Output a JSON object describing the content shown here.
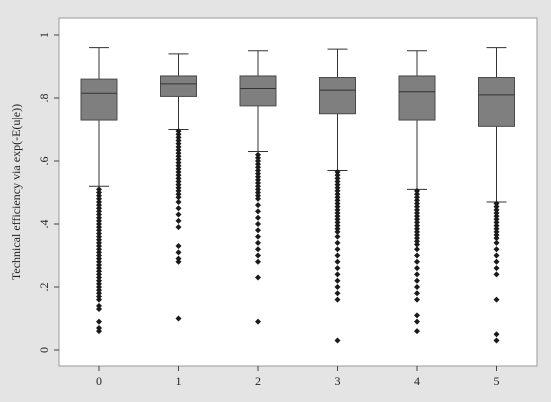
{
  "chart_data": {
    "type": "box",
    "ylabel": "Technical efficiency via exp(-E(u|e))",
    "xlabel": "",
    "ylim": [
      0,
      1
    ],
    "yticks": [
      0,
      0.2,
      0.4,
      0.6,
      0.8,
      1
    ],
    "ytick_labels": [
      "0",
      ".2",
      ".4",
      ".6",
      ".8",
      "1"
    ],
    "grid": false,
    "colors": {
      "box_fill": "#7f7f7f",
      "box_stroke": "#4a4a4a",
      "outlier": "#1a1a1a",
      "plot_bg": "#ffffff",
      "frame_bg": "#e4e4e4"
    },
    "groups": [
      {
        "label": "0",
        "whisker_low": 0.52,
        "q1": 0.73,
        "median": 0.815,
        "q3": 0.86,
        "whisker_high": 0.96,
        "outliers": [
          0.51,
          0.5,
          0.49,
          0.48,
          0.47,
          0.46,
          0.45,
          0.44,
          0.43,
          0.42,
          0.41,
          0.4,
          0.39,
          0.38,
          0.37,
          0.36,
          0.35,
          0.34,
          0.33,
          0.32,
          0.31,
          0.3,
          0.29,
          0.28,
          0.27,
          0.26,
          0.25,
          0.24,
          0.23,
          0.22,
          0.21,
          0.2,
          0.19,
          0.18,
          0.17,
          0.16,
          0.14,
          0.13,
          0.09,
          0.07,
          0.06
        ]
      },
      {
        "label": "1",
        "whisker_low": 0.7,
        "q1": 0.805,
        "median": 0.845,
        "q3": 0.87,
        "whisker_high": 0.94,
        "outliers": [
          0.695,
          0.685,
          0.675,
          0.665,
          0.655,
          0.645,
          0.635,
          0.625,
          0.615,
          0.605,
          0.595,
          0.585,
          0.575,
          0.565,
          0.555,
          0.545,
          0.535,
          0.525,
          0.515,
          0.505,
          0.495,
          0.485,
          0.47,
          0.45,
          0.43,
          0.41,
          0.39,
          0.33,
          0.31,
          0.29,
          0.28,
          0.1
        ]
      },
      {
        "label": "2",
        "whisker_low": 0.63,
        "q1": 0.775,
        "median": 0.83,
        "q3": 0.87,
        "whisker_high": 0.95,
        "outliers": [
          0.62,
          0.61,
          0.6,
          0.59,
          0.58,
          0.57,
          0.56,
          0.55,
          0.54,
          0.53,
          0.52,
          0.51,
          0.5,
          0.49,
          0.48,
          0.46,
          0.44,
          0.42,
          0.4,
          0.38,
          0.36,
          0.34,
          0.32,
          0.3,
          0.28,
          0.23,
          0.09
        ]
      },
      {
        "label": "3",
        "whisker_low": 0.57,
        "q1": 0.75,
        "median": 0.825,
        "q3": 0.865,
        "whisker_high": 0.955,
        "outliers": [
          0.565,
          0.555,
          0.545,
          0.535,
          0.525,
          0.515,
          0.505,
          0.495,
          0.485,
          0.475,
          0.465,
          0.455,
          0.445,
          0.435,
          0.425,
          0.415,
          0.405,
          0.395,
          0.385,
          0.375,
          0.36,
          0.34,
          0.32,
          0.3,
          0.28,
          0.26,
          0.24,
          0.22,
          0.2,
          0.18,
          0.16,
          0.03
        ]
      },
      {
        "label": "4",
        "whisker_low": 0.51,
        "q1": 0.73,
        "median": 0.82,
        "q3": 0.87,
        "whisker_high": 0.95,
        "outliers": [
          0.505,
          0.495,
          0.485,
          0.475,
          0.465,
          0.455,
          0.445,
          0.435,
          0.425,
          0.415,
          0.405,
          0.395,
          0.385,
          0.375,
          0.365,
          0.355,
          0.345,
          0.335,
          0.32,
          0.3,
          0.28,
          0.26,
          0.24,
          0.22,
          0.2,
          0.18,
          0.16,
          0.11,
          0.09,
          0.06
        ]
      },
      {
        "label": "5",
        "whisker_low": 0.47,
        "q1": 0.71,
        "median": 0.81,
        "q3": 0.865,
        "whisker_high": 0.96,
        "outliers": [
          0.465,
          0.455,
          0.445,
          0.435,
          0.425,
          0.415,
          0.405,
          0.395,
          0.385,
          0.375,
          0.365,
          0.355,
          0.34,
          0.32,
          0.3,
          0.28,
          0.26,
          0.24,
          0.16,
          0.05,
          0.03
        ]
      }
    ]
  }
}
